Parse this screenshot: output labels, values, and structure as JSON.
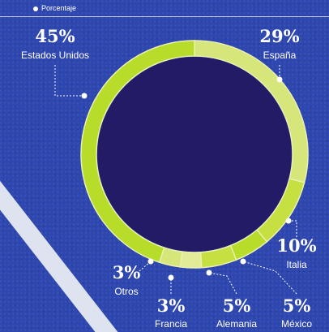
{
  "legend": {
    "label": "Porcentaje"
  },
  "colors": {
    "background": "#2e47b0",
    "center": "#231b66",
    "ring_light": "#d7e67a",
    "ring_mid": "#c6e041",
    "ring_bright": "#b7dc2a",
    "labels": "#ffffff"
  },
  "chart_data": {
    "type": "pie",
    "style": "donut",
    "series": [
      {
        "name": "Estados Unidos",
        "value": 45,
        "label": "45%",
        "color": "#b7dc2a"
      },
      {
        "name": "España",
        "value": 29,
        "label": "29%",
        "color": "#d7e67a"
      },
      {
        "name": "Italia",
        "value": 10,
        "label": "10%",
        "color": "#c6e041"
      },
      {
        "name": "México",
        "value": 5,
        "label": "5%",
        "color": "#b7dc2a"
      },
      {
        "name": "Alemania",
        "value": 5,
        "label": "5%",
        "color": "#c6e041"
      },
      {
        "name": "Francia",
        "value": 3,
        "label": "3%",
        "color": "#e2eb98"
      },
      {
        "name": "Otros",
        "value": 3,
        "label": "3%",
        "color": "#d7e67a"
      }
    ],
    "unit": "%"
  }
}
